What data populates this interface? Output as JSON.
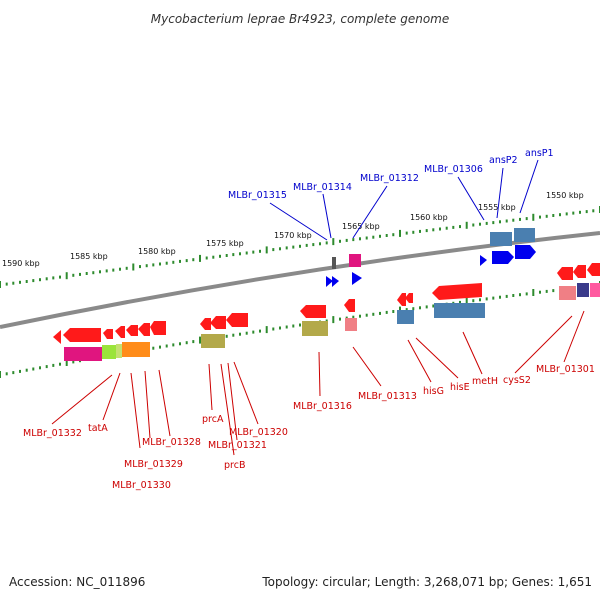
{
  "title": "Mycobacterium leprae Br4923, complete genome",
  "footer": {
    "accession": "Accession: NC_011896",
    "summary": "Topology: circular; Length: 3,268,071 bp; Genes: 1,651"
  },
  "colors": {
    "backbone": "#8a8a8a",
    "tick": "#2e8b2e",
    "label_top": "#0000cc",
    "label_bottom": "#cc0000",
    "gene_blue": "#0000ff",
    "gene_red": "#ff0000"
  },
  "scale_labels": [
    "1590 kbp",
    "1585 kbp",
    "1580 kbp",
    "1575 kbp",
    "1570 kbp",
    "1565 kbp",
    "1560 kbp",
    "1555 kbp",
    "1550 kbp"
  ],
  "top_gene_labels": [
    "MLBr_01315",
    "MLBr_01314",
    "MLBr_01312",
    "MLBr_01306",
    "ansP2",
    "ansP1"
  ],
  "bottom_gene_labels": [
    "MLBr_01332",
    "tatA",
    "MLBr_01328",
    "MLBr_01329",
    "MLBr_01330",
    "prcA",
    "MLBr_01321",
    "prcB",
    "MLBr_01320",
    "MLBr_01316",
    "MLBr_01313",
    "hisG",
    "hisE",
    "metH",
    "cysS2",
    "MLBr_01301"
  ]
}
